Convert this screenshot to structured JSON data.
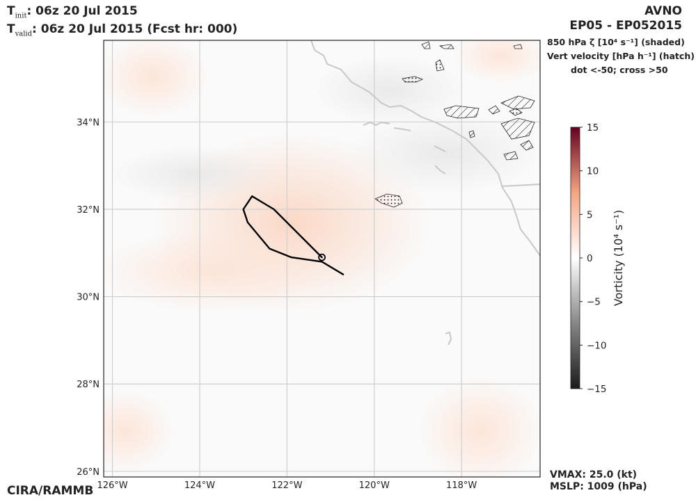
{
  "header": {
    "init_label_T": "T",
    "init_label_sub": "init",
    "init_value": ":  06z 20 Jul 2015",
    "valid_label_T": "T",
    "valid_label_sub": "valid",
    "valid_value": ": 06z 20 Jul 2015 (Fcst hr: 000)",
    "model": "AVNO",
    "storm": "EP05 - EP052015"
  },
  "legend": {
    "line1": "850 hPa ζ [10⁴  s⁻¹] (shaded)",
    "line2": "Vert velocity [hPa h⁻¹] (hatch)",
    "line3": "dot <-50; cross >50"
  },
  "colorbar": {
    "label": "Vorticity (10⁴  s⁻¹)",
    "ticks": [
      "15",
      "10",
      "5",
      "0",
      "−5",
      "−10",
      "−15"
    ],
    "range": [
      -15,
      15
    ],
    "colors": {
      "max": "#67001f",
      "mid_pos": "#f4a582",
      "zero": "#ffffff",
      "mid_neg": "#878787",
      "min": "#1a1a1a"
    }
  },
  "map": {
    "lat_labels": [
      "34°N",
      "32°N",
      "30°N",
      "28°N",
      "26°N"
    ],
    "lon_labels": [
      "126°W",
      "124°W",
      "122°W",
      "120°W",
      "118°W"
    ],
    "lon_range": [
      -126.2,
      -116.2
    ],
    "lat_range": [
      25.87,
      35.87
    ],
    "track": [
      [
        -120.7,
        30.5
      ],
      [
        -121.2,
        30.8
      ],
      [
        -121.9,
        30.9
      ],
      [
        -122.4,
        31.1
      ],
      [
        -122.9,
        31.7
      ],
      [
        -123.0,
        32.0
      ],
      [
        -122.8,
        32.3
      ],
      [
        -122.3,
        32.0
      ],
      [
        -121.2,
        30.9
      ]
    ],
    "storm_center": [
      -121.2,
      30.9
    ],
    "colors": {
      "track": "#000000",
      "coast": "#c8c8c8",
      "grid": "#cfcfcf"
    }
  },
  "footer": {
    "credit": "CIRA/RAMMB",
    "vmax": "VMAX:  25.0 (kt)",
    "mslp": "MSLP: 1009 (hPa)"
  }
}
